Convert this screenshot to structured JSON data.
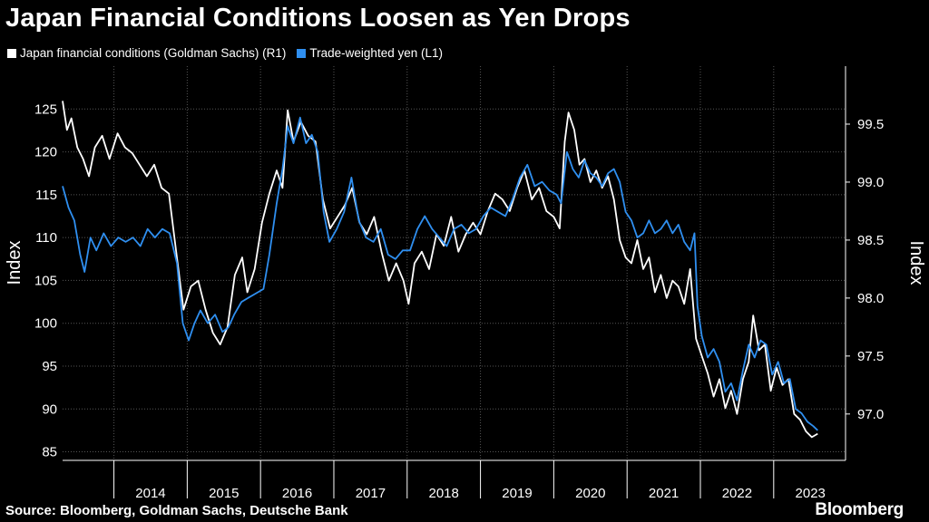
{
  "chart_data": {
    "type": "line",
    "title": "Japan Financial Conditions Loosen as Yen Drops",
    "ylabel_left": "Index",
    "ylabel_right": "Index",
    "left_axis": {
      "min": 84,
      "max": 130,
      "ticks": [
        85,
        90,
        95,
        100,
        105,
        110,
        115,
        120,
        125
      ]
    },
    "right_axis": {
      "min": 96.6,
      "max": 100.0,
      "ticks": [
        "97.0",
        "97.5",
        "98.0",
        "98.5",
        "99.0",
        "99.5"
      ]
    },
    "x_domain": [
      2013.3,
      2023.98
    ],
    "x_ticks": [
      "2014",
      "2015",
      "2016",
      "2017",
      "2018",
      "2019",
      "2020",
      "2021",
      "2022",
      "2023"
    ],
    "series": [
      {
        "name": "Japan financial conditions (Goldman Sachs) (R1)",
        "color": "#ffffff",
        "axis": "right",
        "points": [
          [
            2013.3,
            99.7
          ],
          [
            2013.36,
            99.45
          ],
          [
            2013.42,
            99.55
          ],
          [
            2013.5,
            99.3
          ],
          [
            2013.58,
            99.2
          ],
          [
            2013.66,
            99.05
          ],
          [
            2013.74,
            99.3
          ],
          [
            2013.84,
            99.4
          ],
          [
            2013.94,
            99.2
          ],
          [
            2014.05,
            99.42
          ],
          [
            2014.15,
            99.3
          ],
          [
            2014.25,
            99.25
          ],
          [
            2014.35,
            99.15
          ],
          [
            2014.45,
            99.05
          ],
          [
            2014.55,
            99.15
          ],
          [
            2014.65,
            98.95
          ],
          [
            2014.75,
            98.9
          ],
          [
            2014.85,
            98.4
          ],
          [
            2014.95,
            97.9
          ],
          [
            2015.05,
            98.1
          ],
          [
            2015.15,
            98.15
          ],
          [
            2015.25,
            97.9
          ],
          [
            2015.35,
            97.7
          ],
          [
            2015.45,
            97.6
          ],
          [
            2015.55,
            97.75
          ],
          [
            2015.65,
            98.2
          ],
          [
            2015.75,
            98.35
          ],
          [
            2015.82,
            98.05
          ],
          [
            2015.92,
            98.25
          ],
          [
            2016.02,
            98.65
          ],
          [
            2016.12,
            98.9
          ],
          [
            2016.22,
            99.1
          ],
          [
            2016.3,
            98.95
          ],
          [
            2016.37,
            99.62
          ],
          [
            2016.45,
            99.35
          ],
          [
            2016.55,
            99.52
          ],
          [
            2016.65,
            99.4
          ],
          [
            2016.75,
            99.35
          ],
          [
            2016.85,
            98.85
          ],
          [
            2016.95,
            98.6
          ],
          [
            2017.05,
            98.7
          ],
          [
            2017.15,
            98.8
          ],
          [
            2017.25,
            98.95
          ],
          [
            2017.35,
            98.65
          ],
          [
            2017.45,
            98.55
          ],
          [
            2017.55,
            98.7
          ],
          [
            2017.65,
            98.4
          ],
          [
            2017.75,
            98.15
          ],
          [
            2017.85,
            98.3
          ],
          [
            2017.95,
            98.15
          ],
          [
            2018.02,
            97.95
          ],
          [
            2018.1,
            98.3
          ],
          [
            2018.2,
            98.4
          ],
          [
            2018.3,
            98.25
          ],
          [
            2018.4,
            98.55
          ],
          [
            2018.5,
            98.45
          ],
          [
            2018.6,
            98.7
          ],
          [
            2018.7,
            98.4
          ],
          [
            2018.8,
            98.55
          ],
          [
            2018.9,
            98.65
          ],
          [
            2019.0,
            98.55
          ],
          [
            2019.1,
            98.75
          ],
          [
            2019.2,
            98.9
          ],
          [
            2019.3,
            98.85
          ],
          [
            2019.4,
            98.75
          ],
          [
            2019.5,
            98.95
          ],
          [
            2019.6,
            99.1
          ],
          [
            2019.7,
            98.85
          ],
          [
            2019.8,
            98.95
          ],
          [
            2019.9,
            98.75
          ],
          [
            2020.0,
            98.7
          ],
          [
            2020.08,
            98.6
          ],
          [
            2020.15,
            99.35
          ],
          [
            2020.2,
            99.6
          ],
          [
            2020.28,
            99.45
          ],
          [
            2020.35,
            99.15
          ],
          [
            2020.42,
            99.2
          ],
          [
            2020.5,
            99.0
          ],
          [
            2020.58,
            99.1
          ],
          [
            2020.66,
            98.95
          ],
          [
            2020.74,
            99.05
          ],
          [
            2020.82,
            98.85
          ],
          [
            2020.9,
            98.5
          ],
          [
            2020.98,
            98.35
          ],
          [
            2021.06,
            98.3
          ],
          [
            2021.14,
            98.5
          ],
          [
            2021.22,
            98.25
          ],
          [
            2021.3,
            98.35
          ],
          [
            2021.38,
            98.05
          ],
          [
            2021.46,
            98.2
          ],
          [
            2021.54,
            98.0
          ],
          [
            2021.62,
            98.15
          ],
          [
            2021.7,
            98.1
          ],
          [
            2021.78,
            97.95
          ],
          [
            2021.86,
            98.25
          ],
          [
            2021.94,
            97.65
          ],
          [
            2022.02,
            97.5
          ],
          [
            2022.1,
            97.35
          ],
          [
            2022.18,
            97.15
          ],
          [
            2022.26,
            97.3
          ],
          [
            2022.34,
            97.05
          ],
          [
            2022.42,
            97.2
          ],
          [
            2022.5,
            97.0
          ],
          [
            2022.58,
            97.3
          ],
          [
            2022.66,
            97.45
          ],
          [
            2022.72,
            97.85
          ],
          [
            2022.8,
            97.55
          ],
          [
            2022.88,
            97.6
          ],
          [
            2022.96,
            97.2
          ],
          [
            2023.04,
            97.4
          ],
          [
            2023.12,
            97.25
          ],
          [
            2023.2,
            97.3
          ],
          [
            2023.28,
            97.0
          ],
          [
            2023.36,
            96.95
          ],
          [
            2023.44,
            96.85
          ],
          [
            2023.52,
            96.8
          ],
          [
            2023.6,
            96.83
          ]
        ]
      },
      {
        "name": "Trade-weighted yen  (L1)",
        "color": "#2f8ff0",
        "axis": "left",
        "points": [
          [
            2013.3,
            116.0
          ],
          [
            2013.38,
            113.5
          ],
          [
            2013.46,
            112.0
          ],
          [
            2013.54,
            108.0
          ],
          [
            2013.6,
            106.0
          ],
          [
            2013.68,
            110.0
          ],
          [
            2013.76,
            108.5
          ],
          [
            2013.86,
            110.5
          ],
          [
            2013.96,
            109.0
          ],
          [
            2014.06,
            110.0
          ],
          [
            2014.16,
            109.5
          ],
          [
            2014.26,
            110.0
          ],
          [
            2014.36,
            109.0
          ],
          [
            2014.46,
            111.0
          ],
          [
            2014.56,
            110.0
          ],
          [
            2014.66,
            111.0
          ],
          [
            2014.76,
            110.5
          ],
          [
            2014.86,
            107.0
          ],
          [
            2014.94,
            100.0
          ],
          [
            2015.02,
            98.0
          ],
          [
            2015.1,
            100.0
          ],
          [
            2015.18,
            101.5
          ],
          [
            2015.28,
            100.0
          ],
          [
            2015.38,
            101.0
          ],
          [
            2015.48,
            99.0
          ],
          [
            2015.56,
            99.5
          ],
          [
            2015.64,
            101.0
          ],
          [
            2015.74,
            102.5
          ],
          [
            2015.84,
            103.0
          ],
          [
            2015.94,
            103.5
          ],
          [
            2016.04,
            104.0
          ],
          [
            2016.12,
            108.0
          ],
          [
            2016.22,
            114.0
          ],
          [
            2016.3,
            118.0
          ],
          [
            2016.37,
            123.0
          ],
          [
            2016.45,
            121.0
          ],
          [
            2016.54,
            124.0
          ],
          [
            2016.62,
            121.0
          ],
          [
            2016.7,
            122.0
          ],
          [
            2016.78,
            120.0
          ],
          [
            2016.86,
            113.0
          ],
          [
            2016.94,
            109.5
          ],
          [
            2017.04,
            111.0
          ],
          [
            2017.14,
            113.0
          ],
          [
            2017.24,
            117.0
          ],
          [
            2017.34,
            112.0
          ],
          [
            2017.44,
            110.0
          ],
          [
            2017.54,
            109.5
          ],
          [
            2017.64,
            111.0
          ],
          [
            2017.74,
            108.0
          ],
          [
            2017.84,
            107.5
          ],
          [
            2017.94,
            108.5
          ],
          [
            2018.04,
            108.5
          ],
          [
            2018.14,
            111.0
          ],
          [
            2018.24,
            112.5
          ],
          [
            2018.34,
            111.0
          ],
          [
            2018.44,
            110.0
          ],
          [
            2018.54,
            109.0
          ],
          [
            2018.64,
            111.0
          ],
          [
            2018.74,
            111.5
          ],
          [
            2018.84,
            110.5
          ],
          [
            2018.94,
            111.0
          ],
          [
            2019.04,
            112.5
          ],
          [
            2019.14,
            113.5
          ],
          [
            2019.24,
            113.0
          ],
          [
            2019.34,
            112.5
          ],
          [
            2019.44,
            114.5
          ],
          [
            2019.54,
            117.0
          ],
          [
            2019.64,
            118.5
          ],
          [
            2019.74,
            116.0
          ],
          [
            2019.84,
            116.5
          ],
          [
            2019.94,
            115.5
          ],
          [
            2020.04,
            115.0
          ],
          [
            2020.1,
            114.0
          ],
          [
            2020.18,
            120.0
          ],
          [
            2020.26,
            118.0
          ],
          [
            2020.34,
            117.0
          ],
          [
            2020.42,
            119.0
          ],
          [
            2020.5,
            117.5
          ],
          [
            2020.58,
            117.0
          ],
          [
            2020.66,
            116.0
          ],
          [
            2020.74,
            117.5
          ],
          [
            2020.82,
            118.0
          ],
          [
            2020.9,
            116.5
          ],
          [
            2020.98,
            113.0
          ],
          [
            2021.06,
            112.0
          ],
          [
            2021.14,
            110.0
          ],
          [
            2021.22,
            110.5
          ],
          [
            2021.3,
            112.0
          ],
          [
            2021.38,
            110.5
          ],
          [
            2021.46,
            111.0
          ],
          [
            2021.54,
            112.0
          ],
          [
            2021.62,
            110.5
          ],
          [
            2021.7,
            111.5
          ],
          [
            2021.78,
            109.5
          ],
          [
            2021.86,
            108.5
          ],
          [
            2021.92,
            110.5
          ],
          [
            2021.96,
            102.0
          ],
          [
            2022.02,
            98.5
          ],
          [
            2022.1,
            96.0
          ],
          [
            2022.18,
            97.0
          ],
          [
            2022.26,
            95.5
          ],
          [
            2022.34,
            92.0
          ],
          [
            2022.42,
            93.0
          ],
          [
            2022.5,
            91.0
          ],
          [
            2022.58,
            94.5
          ],
          [
            2022.66,
            97.5
          ],
          [
            2022.74,
            96.0
          ],
          [
            2022.82,
            98.0
          ],
          [
            2022.9,
            97.5
          ],
          [
            2022.98,
            94.0
          ],
          [
            2023.06,
            95.5
          ],
          [
            2023.14,
            93.0
          ],
          [
            2023.22,
            93.5
          ],
          [
            2023.3,
            90.0
          ],
          [
            2023.38,
            89.5
          ],
          [
            2023.46,
            88.5
          ],
          [
            2023.54,
            88.0
          ],
          [
            2023.6,
            87.5
          ]
        ]
      }
    ]
  },
  "source": "Source: Bloomberg, Goldman Sachs, Deutsche Bank",
  "brand": "Bloomberg"
}
